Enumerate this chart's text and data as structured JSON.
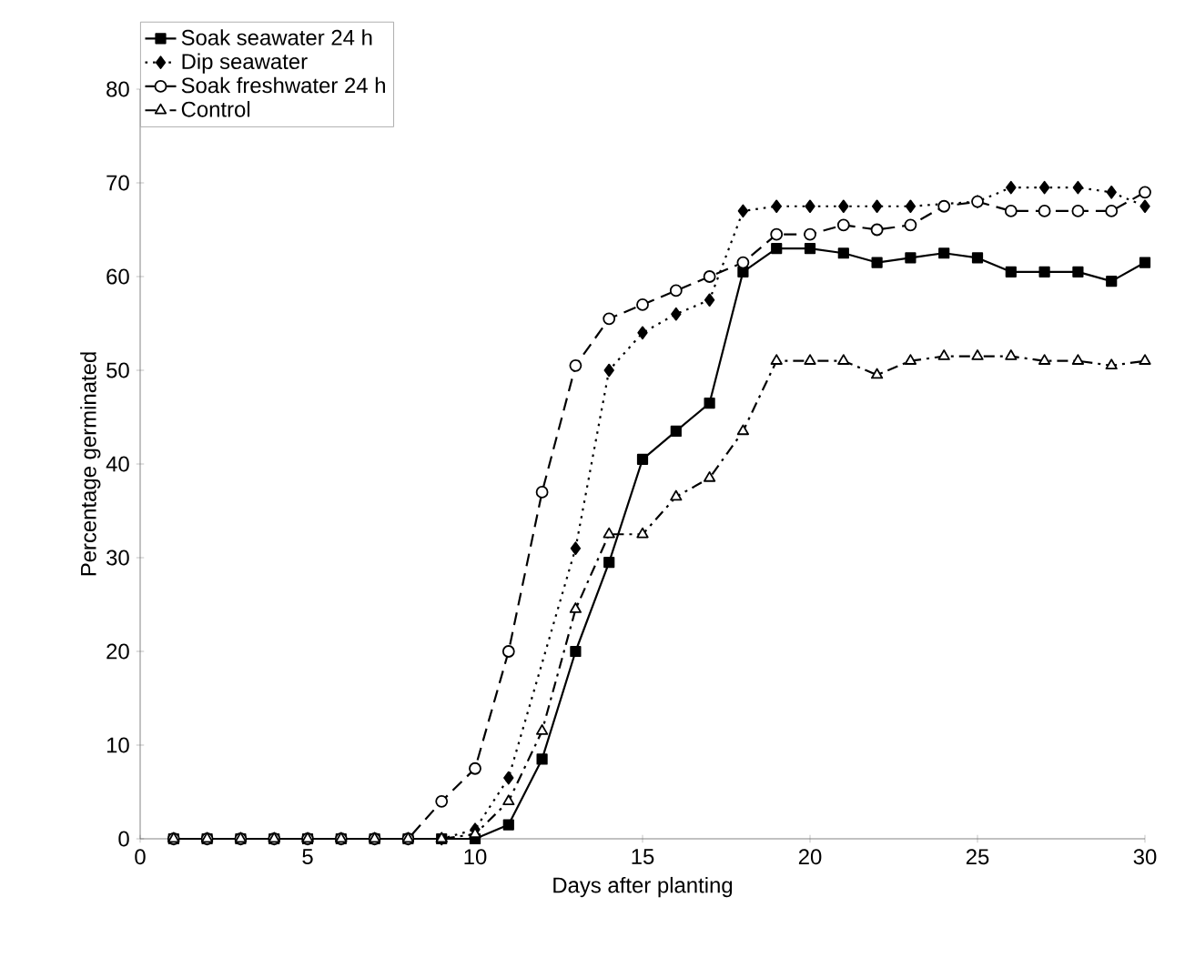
{
  "chart_data": {
    "type": "line",
    "xlabel": "Days after planting",
    "ylabel": "Percentage germinated",
    "x": [
      1,
      2,
      3,
      4,
      5,
      6,
      7,
      8,
      9,
      10,
      11,
      12,
      13,
      14,
      15,
      16,
      17,
      18,
      19,
      20,
      21,
      22,
      23,
      24,
      25,
      26,
      27,
      28,
      29,
      30
    ],
    "xlim": [
      0,
      30
    ],
    "xticks": [
      0,
      5,
      10,
      15,
      20,
      25,
      30
    ],
    "ylim": [
      0,
      80
    ],
    "yticks": [
      0,
      10,
      20,
      30,
      40,
      50,
      60,
      70,
      80
    ],
    "grid": false,
    "legend": "top left",
    "series": [
      {
        "name": "Soak seawater 24 h",
        "color": "#000000",
        "marker": "square",
        "line_style": "solid",
        "values": [
          0,
          0,
          0,
          0,
          0,
          0,
          0,
          0,
          0,
          0,
          1.5,
          8.5,
          20,
          29.5,
          40.5,
          43.5,
          46.5,
          60.5,
          63,
          63,
          62.5,
          61.5,
          62,
          62.5,
          62,
          60.5,
          60.5,
          60.5,
          59.5,
          61.5
        ]
      },
      {
        "name": "Dip seawater",
        "color": "#000000",
        "marker": "diamond",
        "line_style": "dotted",
        "values": [
          0,
          0,
          0,
          0,
          0,
          0,
          0,
          0,
          0,
          1,
          6.5,
          null,
          31,
          50,
          54,
          56,
          57.5,
          67,
          67.5,
          67.5,
          67.5,
          67.5,
          67.5,
          null,
          68,
          69.5,
          69.5,
          69.5,
          69,
          67.5
        ]
      },
      {
        "name": "Soak freshwater 24 h",
        "color": "#000000",
        "marker": "circle",
        "line_style": "dashed",
        "values": [
          0,
          0,
          0,
          0,
          0,
          0,
          0,
          0,
          4,
          7.5,
          20,
          37,
          50.5,
          55.5,
          57,
          58.5,
          60,
          61.5,
          64.5,
          64.5,
          65.5,
          65,
          65.5,
          67.5,
          68,
          67,
          67,
          67,
          67,
          69
        ]
      },
      {
        "name": "Control",
        "color": "#000000",
        "marker": "triangle",
        "line_style": "dashdot",
        "values": [
          0,
          0,
          0,
          0,
          0,
          0,
          0,
          0,
          0,
          0.5,
          4,
          11.5,
          24.5,
          32.5,
          32.5,
          36.5,
          38.5,
          43.5,
          51,
          51,
          51,
          49.5,
          51,
          51.5,
          51.5,
          51.5,
          51,
          51,
          50.5,
          51
        ]
      }
    ]
  }
}
